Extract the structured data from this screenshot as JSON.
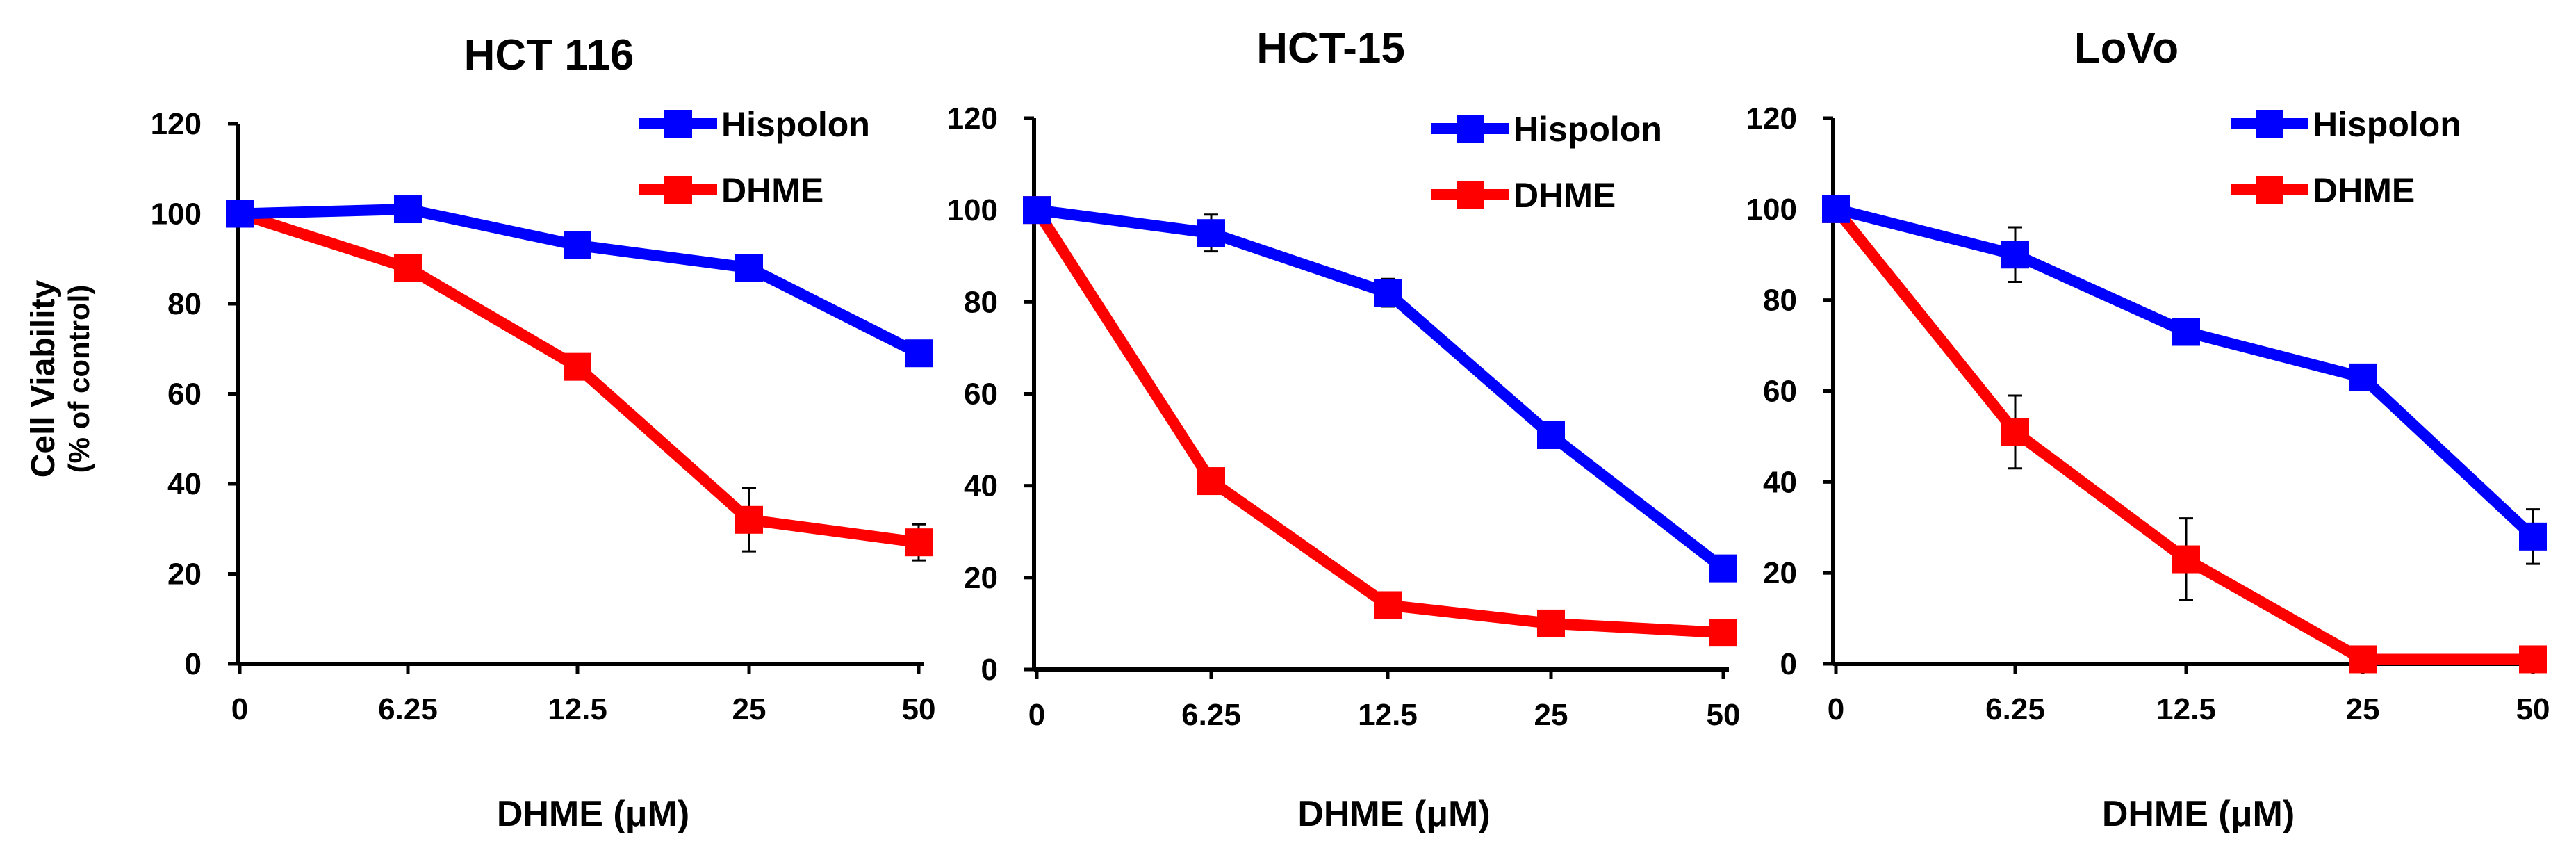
{
  "y_axis": {
    "label": "Cell Viability",
    "sublabel": "(% of control)"
  },
  "chart_data": [
    {
      "type": "line",
      "title": "HCT 116",
      "xlabel": "DHME (μM)",
      "categories": [
        "0",
        "6.25",
        "12.5",
        "25",
        "50"
      ],
      "ylim": [
        0,
        120
      ],
      "yticks": [
        0,
        20,
        40,
        60,
        80,
        100,
        120
      ],
      "legend_position": "top-right",
      "series": [
        {
          "name": "Hispolon",
          "color": "#0000FF",
          "values": [
            100,
            101,
            93,
            88,
            69
          ],
          "errors": [
            0,
            1,
            1,
            1,
            1
          ]
        },
        {
          "name": "DHME",
          "color": "#FF0000",
          "values": [
            100,
            88,
            66,
            32,
            27
          ],
          "errors": [
            0,
            1,
            1,
            7,
            4
          ]
        }
      ]
    },
    {
      "type": "line",
      "title": "HCT-15",
      "xlabel": "DHME (μM)",
      "categories": [
        "0",
        "6.25",
        "12.5",
        "25",
        "50"
      ],
      "ylim": [
        0,
        120
      ],
      "yticks": [
        0,
        20,
        40,
        60,
        80,
        100,
        120
      ],
      "legend_position": "top-right",
      "series": [
        {
          "name": "Hispolon",
          "color": "#0000FF",
          "values": [
            100,
            95,
            82,
            51,
            22
          ],
          "errors": [
            0,
            4,
            3,
            1,
            1
          ]
        },
        {
          "name": "DHME",
          "color": "#FF0000",
          "values": [
            100,
            41,
            14,
            10,
            8
          ],
          "errors": [
            0,
            2,
            1,
            1,
            1
          ]
        }
      ]
    },
    {
      "type": "line",
      "title": "LoVo",
      "xlabel": "DHME (μM)",
      "categories": [
        "0",
        "6.25",
        "12.5",
        "25",
        "50"
      ],
      "ylim": [
        0,
        120
      ],
      "yticks": [
        0,
        20,
        40,
        60,
        80,
        100,
        120
      ],
      "legend_position": "top-right",
      "series": [
        {
          "name": "Hispolon",
          "color": "#0000FF",
          "values": [
            100,
            90,
            73,
            63,
            28
          ],
          "errors": [
            0,
            6,
            2,
            1,
            6
          ]
        },
        {
          "name": "DHME",
          "color": "#FF0000",
          "values": [
            100,
            51,
            23,
            1,
            1
          ],
          "errors": [
            0,
            8,
            9,
            0,
            0
          ]
        }
      ]
    }
  ]
}
